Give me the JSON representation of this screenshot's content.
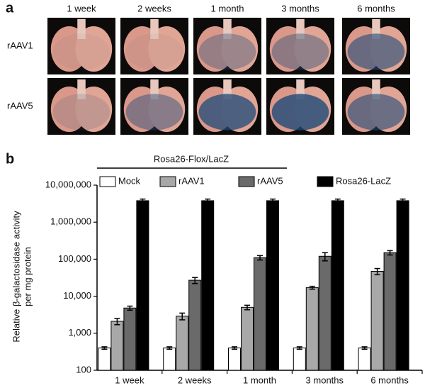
{
  "panel_a": {
    "label": "a",
    "columns": [
      "1 week",
      "2 weeks",
      "1 month",
      "3 months",
      "6 months"
    ],
    "rows": [
      "rAAV1",
      "rAAV5"
    ]
  },
  "chart_data": {
    "type": "bar",
    "panel_label": "b",
    "annotation": "Rosa26-Flox/LacZ",
    "ylabel": [
      "Relative β-galactosidase activity",
      "per mg protein"
    ],
    "categories": [
      "1 week",
      "2 weeks",
      "1 month",
      "3 months",
      "6 months"
    ],
    "series": [
      {
        "name": "Mock",
        "color": "#ffffff",
        "values": [
          400,
          400,
          400,
          400,
          400
        ],
        "errors": [
          30,
          30,
          30,
          30,
          30
        ]
      },
      {
        "name": "rAAV1",
        "color": "#a8a8a8",
        "values": [
          2100,
          2900,
          5000,
          17000,
          47000
        ],
        "errors": [
          400,
          600,
          700,
          1500,
          9000
        ]
      },
      {
        "name": "rAAV5",
        "color": "#6a6a6a",
        "values": [
          4800,
          27000,
          110000,
          120000,
          150000
        ],
        "errors": [
          600,
          5000,
          15000,
          30000,
          20000
        ]
      },
      {
        "name": "Rosa26-LacZ",
        "color": "#000000",
        "values": [
          3800000,
          3800000,
          3800000,
          3800000,
          3800000
        ],
        "errors": [
          400000,
          400000,
          400000,
          400000,
          400000
        ]
      }
    ],
    "ylim": [
      100,
      10000000
    ],
    "log_scale": true,
    "yticks": [
      100,
      {
        "value": 1000,
        "label": "1,000"
      },
      {
        "value": 10000,
        "label": "10,000"
      },
      {
        "value": 100000,
        "label": "100,000"
      },
      {
        "value": 1000000,
        "label": "1,000,000"
      },
      {
        "value": 10000000,
        "label": "10,000,000"
      }
    ],
    "legend": "top"
  }
}
